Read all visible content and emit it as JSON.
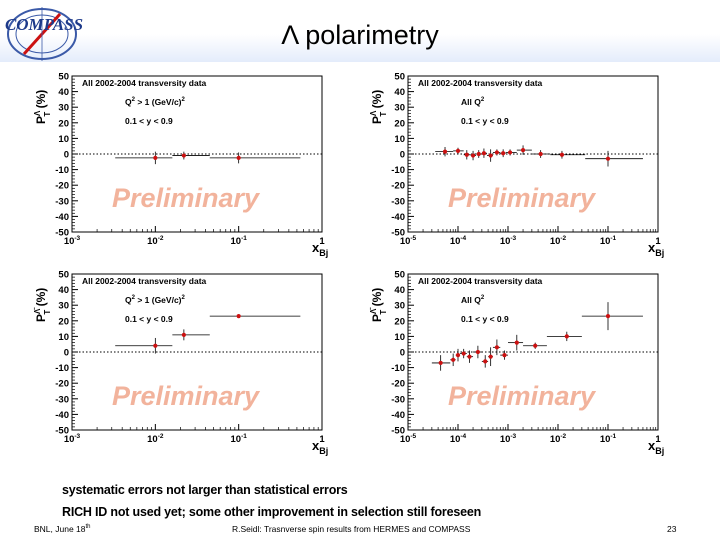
{
  "slide": {
    "title": "Λ polarimetry",
    "logo_text": "COMPASS",
    "notes": [
      "systematic errors not larger than statistical errors",
      "RICH ID not used yet; some other  improvement in selection still foreseen"
    ],
    "footer_left": "BNL, June 18",
    "footer_left_sup": "th",
    "footer_center": "R.Seidl: Trasnverse spin results from HERMES and COMPASS",
    "page_number": "23"
  },
  "colors": {
    "marker": "#cc1111",
    "header_band": "#e4ecfb",
    "watermark": "#f2b39c"
  },
  "chart_data": [
    {
      "type": "scatter",
      "ylabel_main": "P",
      "ylabel_sup": "Λ",
      "ylabel_sub": "T",
      "ylabel_unit": "(%)",
      "xlabel_main": "x",
      "xlabel_sub": "Bj",
      "x_scale": "log",
      "xlim": [
        0.001,
        1
      ],
      "ylim": [
        -50,
        50
      ],
      "y_ticks": [
        "50",
        "40",
        "30",
        "20",
        "10",
        "0",
        "-10",
        "-20",
        "-30",
        "-40",
        "-50"
      ],
      "x_ticks": [
        {
          "base": "10",
          "exp": "-3"
        },
        {
          "base": "10",
          "exp": "-2"
        },
        {
          "base": "10",
          "exp": "-1"
        },
        {
          "base": "1",
          "exp": ""
        }
      ],
      "legend": {
        "line1": "All 2002-2004 transversity data",
        "line2_main": "Q",
        "line2_sup1": "2",
        "line2_rest": " > 1 (GeV/c)",
        "line2_sup2": "2",
        "line3": "0.1 < y < 0.9"
      },
      "watermark": "Preliminary",
      "points": [
        {
          "x": 0.01,
          "y": -2.5,
          "xlo": 0.0033,
          "xhi": 0.016,
          "yerr": 4
        },
        {
          "x": 0.022,
          "y": -1,
          "xlo": 0.016,
          "xhi": 0.045,
          "yerr": 2.5
        },
        {
          "x": 0.1,
          "y": -2.5,
          "xlo": 0.045,
          "xhi": 0.55,
          "yerr": 3.5
        }
      ]
    },
    {
      "type": "scatter",
      "ylabel_main": "P",
      "ylabel_sup": "Λ",
      "ylabel_sub": "T",
      "ylabel_unit": "(%)",
      "xlabel_main": "x",
      "xlabel_sub": "Bj",
      "x_scale": "log",
      "xlim": [
        1e-05,
        1
      ],
      "ylim": [
        -50,
        50
      ],
      "y_ticks": [
        "50",
        "40",
        "30",
        "20",
        "10",
        "0",
        "-10",
        "-20",
        "-30",
        "-40",
        "-50"
      ],
      "x_ticks": [
        {
          "base": "10",
          "exp": "-5"
        },
        {
          "base": "10",
          "exp": "-4"
        },
        {
          "base": "10",
          "exp": "-3"
        },
        {
          "base": "10",
          "exp": "-2"
        },
        {
          "base": "10",
          "exp": "-1"
        },
        {
          "base": "1",
          "exp": ""
        }
      ],
      "legend": {
        "line1": "All 2002-2004 transversity data",
        "line2_main": "All Q",
        "line2_sup1": "2",
        "line2_rest": "",
        "line2_sup2": "",
        "line3": "0.1 < y < 0.9"
      },
      "watermark": "Preliminary",
      "points": [
        {
          "x": 5.5e-05,
          "y": 1.5,
          "xlo": 3.5e-05,
          "xhi": 8e-05,
          "yerr": 3
        },
        {
          "x": 0.0001,
          "y": 2,
          "xlo": 8e-05,
          "xhi": 0.00013,
          "yerr": 2
        },
        {
          "x": 0.00015,
          "y": -0.5,
          "xlo": 0.00013,
          "xhi": 0.00018,
          "yerr": 3
        },
        {
          "x": 0.0002,
          "y": -1,
          "xlo": 0.00018,
          "xhi": 0.00023,
          "yerr": 3
        },
        {
          "x": 0.00026,
          "y": 0,
          "xlo": 0.00023,
          "xhi": 0.0003,
          "yerr": 2.5
        },
        {
          "x": 0.00033,
          "y": 0.5,
          "xlo": 0.0003,
          "xhi": 0.00038,
          "yerr": 3
        },
        {
          "x": 0.00045,
          "y": -1,
          "xlo": 0.00038,
          "xhi": 0.0005,
          "yerr": 4
        },
        {
          "x": 0.0006,
          "y": 1,
          "xlo": 0.0005,
          "xhi": 0.0007,
          "yerr": 2
        },
        {
          "x": 0.0008,
          "y": 0.5,
          "xlo": 0.0007,
          "xhi": 0.0009,
          "yerr": 2.5
        },
        {
          "x": 0.0011,
          "y": 1,
          "xlo": 0.0009,
          "xhi": 0.0015,
          "yerr": 2
        },
        {
          "x": 0.002,
          "y": 2.5,
          "xlo": 0.0015,
          "xhi": 0.003,
          "yerr": 3
        },
        {
          "x": 0.0045,
          "y": 0,
          "xlo": 0.003,
          "xhi": 0.007,
          "yerr": 2.5
        },
        {
          "x": 0.012,
          "y": -0.5,
          "xlo": 0.007,
          "xhi": 0.035,
          "yerr": 2.5
        },
        {
          "x": 0.1,
          "y": -3,
          "xlo": 0.035,
          "xhi": 0.5,
          "yerr": 5
        }
      ]
    },
    {
      "type": "scatter",
      "ylabel_main": "P",
      "ylabel_sup": "Λ̄",
      "ylabel_sub": "T",
      "ylabel_unit": "(%)",
      "xlabel_main": "x",
      "xlabel_sub": "Bj",
      "x_scale": "log",
      "xlim": [
        0.001,
        1
      ],
      "ylim": [
        -50,
        50
      ],
      "y_ticks": [
        "50",
        "40",
        "30",
        "20",
        "10",
        "0",
        "-10",
        "-20",
        "-30",
        "-40",
        "-50"
      ],
      "x_ticks": [
        {
          "base": "10",
          "exp": "-3"
        },
        {
          "base": "10",
          "exp": "-2"
        },
        {
          "base": "10",
          "exp": "-1"
        },
        {
          "base": "1",
          "exp": ""
        }
      ],
      "legend": {
        "line1": "All 2002-2004 transversity data",
        "line2_main": "Q",
        "line2_sup1": "2",
        "line2_rest": " > 1 (GeV/c)",
        "line2_sup2": "2",
        "line3": "0.1 < y < 0.9"
      },
      "watermark": "Preliminary",
      "points": [
        {
          "x": 0.01,
          "y": 4,
          "xlo": 0.0033,
          "xhi": 0.016,
          "yerr": 5
        },
        {
          "x": 0.022,
          "y": 11,
          "xlo": 0.016,
          "xhi": 0.045,
          "yerr": 3.5
        },
        {
          "x": 0.1,
          "y": 23,
          "xlo": 0.045,
          "xhi": 0.55,
          "yerr": 0.5
        }
      ]
    },
    {
      "type": "scatter",
      "ylabel_main": "P",
      "ylabel_sup": "Λ̄",
      "ylabel_sub": "T",
      "ylabel_unit": "(%)",
      "xlabel_main": "x",
      "xlabel_sub": "Bj",
      "x_scale": "log",
      "xlim": [
        1e-05,
        1
      ],
      "ylim": [
        -50,
        50
      ],
      "y_ticks": [
        "50",
        "40",
        "30",
        "20",
        "10",
        "0",
        "-10",
        "-20",
        "-30",
        "-40",
        "-50"
      ],
      "x_ticks": [
        {
          "base": "10",
          "exp": "-5"
        },
        {
          "base": "10",
          "exp": "-4"
        },
        {
          "base": "10",
          "exp": "-3"
        },
        {
          "base": "10",
          "exp": "-2"
        },
        {
          "base": "10",
          "exp": "-1"
        },
        {
          "base": "1",
          "exp": ""
        }
      ],
      "legend": {
        "line1": "All 2002-2004 transversity data",
        "line2_main": "All Q",
        "line2_sup1": "2",
        "line2_rest": "",
        "line2_sup2": "",
        "line3": "0.1 < y < 0.9"
      },
      "watermark": "Preliminary",
      "points": [
        {
          "x": 4.5e-05,
          "y": -7,
          "xlo": 3e-05,
          "xhi": 7e-05,
          "yerr": 5
        },
        {
          "x": 8e-05,
          "y": -5,
          "xlo": 7e-05,
          "xhi": 9e-05,
          "yerr": 4
        },
        {
          "x": 0.0001,
          "y": -2,
          "xlo": 9e-05,
          "xhi": 0.00011,
          "yerr": 4
        },
        {
          "x": 0.00013,
          "y": -1,
          "xlo": 0.00011,
          "xhi": 0.00015,
          "yerr": 3
        },
        {
          "x": 0.00017,
          "y": -3,
          "xlo": 0.00015,
          "xhi": 0.0002,
          "yerr": 4
        },
        {
          "x": 0.00025,
          "y": 0,
          "xlo": 0.0002,
          "xhi": 0.0003,
          "yerr": 4
        },
        {
          "x": 0.00035,
          "y": -6,
          "xlo": 0.0003,
          "xhi": 0.0004,
          "yerr": 4
        },
        {
          "x": 0.00045,
          "y": -3,
          "xlo": 0.0004,
          "xhi": 0.0005,
          "yerr": 6
        },
        {
          "x": 0.0006,
          "y": 3,
          "xlo": 0.0005,
          "xhi": 0.0007,
          "yerr": 5
        },
        {
          "x": 0.00085,
          "y": -2,
          "xlo": 0.0007,
          "xhi": 0.001,
          "yerr": 3
        },
        {
          "x": 0.0015,
          "y": 6,
          "xlo": 0.001,
          "xhi": 0.002,
          "yerr": 5
        },
        {
          "x": 0.0035,
          "y": 4,
          "xlo": 0.002,
          "xhi": 0.006,
          "yerr": 2
        },
        {
          "x": 0.015,
          "y": 10,
          "xlo": 0.006,
          "xhi": 0.03,
          "yerr": 3
        },
        {
          "x": 0.1,
          "y": 23,
          "xlo": 0.03,
          "xhi": 0.5,
          "yerr": 9
        }
      ]
    }
  ]
}
